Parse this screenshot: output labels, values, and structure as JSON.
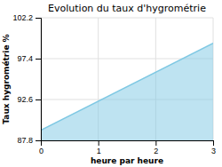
{
  "chart_data": {
    "type": "area",
    "title": "Evolution du taux d'hygrométrie",
    "xlabel": "heure par heure",
    "ylabel": "Taux hygrométrie %",
    "x": [
      0,
      3
    ],
    "values": [
      89.0,
      99.2
    ],
    "color": "#7ec8e3",
    "xlim": [
      0,
      3
    ],
    "xticks": [
      0,
      1,
      2,
      3
    ],
    "ylim": [
      87.8,
      102.2
    ],
    "yticks": [
      87.8,
      92.6,
      97.4,
      102.2
    ],
    "grid": true
  }
}
